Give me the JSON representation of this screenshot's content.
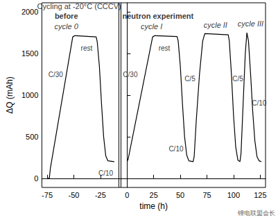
{
  "chart_data": {
    "type": "line",
    "title": "Cycling at -20°C (CCCV)",
    "x_label": "time (h)",
    "y_label": "ΔQ (mAh)",
    "xlim": [
      -80,
      130
    ],
    "xticks": [
      -75,
      -50,
      -25,
      0,
      25,
      50,
      75,
      100,
      125
    ],
    "ylim": [
      -110,
      2110
    ],
    "yticks": [
      0,
      500,
      1000,
      1500,
      2000
    ],
    "grid": false,
    "color": "#000000",
    "separator_x": [
      -8,
      -6
    ],
    "x": [
      -75,
      -73,
      -72,
      -51,
      -49,
      -29,
      -28,
      -26,
      -24,
      -22,
      -20,
      -18,
      -12,
      -10,
      0,
      1,
      24,
      26,
      47,
      48,
      50,
      52,
      54,
      56,
      58,
      62,
      63,
      65,
      68,
      71,
      73,
      95,
      96,
      98,
      100,
      102,
      104,
      106,
      107,
      109,
      111,
      112.5,
      114,
      116,
      118,
      120,
      122,
      124,
      126
    ],
    "values": [
      0,
      0,
      120,
      1700,
      1715,
      1700,
      1640,
      1350,
      900,
      500,
      270,
      210,
      200,
      null,
      200,
      230,
      1700,
      1715,
      1705,
      1650,
      1350,
      900,
      500,
      280,
      210,
      200,
      260,
      700,
      1250,
      1650,
      1740,
      1725,
      1650,
      1250,
      750,
      380,
      220,
      200,
      300,
      900,
      1500,
      1750,
      1650,
      1250,
      800,
      450,
      260,
      210,
      200
    ],
    "headings": [
      {
        "text": "before",
        "x": -57,
        "y": 1950
      },
      {
        "text": "neutron experiment",
        "x": 29,
        "y": 1950
      }
    ],
    "cycle_labels": [
      {
        "text": "cycle 0",
        "x": -57,
        "y": 1830
      },
      {
        "text": "cycle I",
        "x": 23,
        "y": 1830
      },
      {
        "text": "cycle II",
        "x": 83,
        "y": 1840
      },
      {
        "text": "cycle III",
        "x": 116,
        "y": 1860
      }
    ],
    "annotations": [
      {
        "text": "rest",
        "x": -38,
        "y": 1560
      },
      {
        "text": "rest",
        "x": 35,
        "y": 1560
      },
      {
        "text": "C/30",
        "x": -67,
        "y": 1250
      },
      {
        "text": "C/30",
        "x": 3,
        "y": 1250
      },
      {
        "text": "C/10",
        "x": -20,
        "y": 60
      },
      {
        "text": "C/10",
        "x": 46,
        "y": 350
      },
      {
        "text": "C/5",
        "x": 59,
        "y": 1200
      },
      {
        "text": "C/5",
        "x": 104,
        "y": 1200
      },
      {
        "text": "C/10",
        "x": 124,
        "y": 900
      }
    ],
    "watermark": "锂电联盟会长"
  }
}
